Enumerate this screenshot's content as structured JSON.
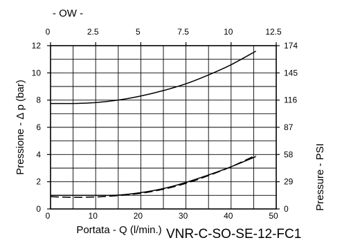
{
  "chart_data": {
    "type": "line",
    "top_axis": {
      "label": "- OW -",
      "ticks": [
        "0",
        "2.5",
        "5",
        "7.5",
        "10",
        "12.5"
      ],
      "range": [
        0,
        12.5
      ]
    },
    "x_axis": {
      "label": "Portata - Q (l/min.)",
      "ticks": [
        "0",
        "10",
        "20",
        "30",
        "40",
        "50"
      ],
      "range": [
        0,
        50
      ]
    },
    "y_axis": {
      "label": "Pressione - Δ p (bar)",
      "ticks": [
        "0",
        "2",
        "4",
        "6",
        "8",
        "10",
        "12"
      ],
      "range": [
        0,
        12
      ]
    },
    "y2_axis": {
      "label": "Pressure - PSI",
      "ticks": [
        "0",
        "29",
        "58",
        "87",
        "116",
        "145",
        "174"
      ],
      "range": [
        0,
        174
      ]
    },
    "grid": true,
    "model_code": "VNR-C-SO-SE-12-FC1",
    "series": [
      {
        "style": "solid",
        "x": [
          0,
          5,
          10,
          15,
          20,
          25,
          30,
          35,
          40,
          45.5
        ],
        "y": [
          7.75,
          7.75,
          7.82,
          8.0,
          8.3,
          8.7,
          9.2,
          9.85,
          10.6,
          11.6
        ]
      },
      {
        "style": "solid",
        "x": [
          0,
          5,
          10,
          15,
          20,
          25,
          30,
          35,
          40,
          45.5
        ],
        "y": [
          1.0,
          1.0,
          1.0,
          1.02,
          1.2,
          1.5,
          1.95,
          2.5,
          3.1,
          3.85
        ]
      },
      {
        "style": "dashed",
        "x": [
          0,
          5,
          10,
          15,
          20,
          25,
          30,
          35,
          40,
          45.5
        ],
        "y": [
          0.9,
          0.85,
          0.88,
          0.98,
          1.15,
          1.45,
          1.88,
          2.45,
          3.1,
          3.95
        ]
      }
    ]
  }
}
